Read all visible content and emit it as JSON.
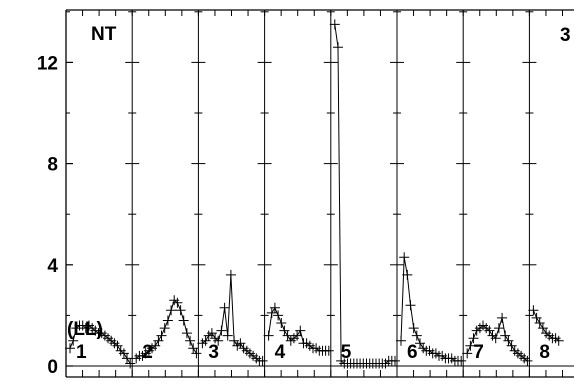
{
  "chart_data": {
    "type": "line",
    "title": "",
    "xlabel": "",
    "ylabel": "",
    "ylim": [
      -0.4,
      14.2
    ],
    "y_ticks": [
      0,
      4,
      8,
      12
    ],
    "y_tick_labels": [
      "0",
      "4",
      "8",
      "12"
    ],
    "grid": false,
    "marker": "plus",
    "corner_left_label": "NT",
    "corner_right_label": "3",
    "axis_annotation": "(LL)",
    "reference_line_y": 0,
    "panels": [
      {
        "label": "1",
        "x": [
          0,
          1,
          2,
          3,
          4,
          5,
          6,
          7,
          8,
          9,
          10,
          11,
          12,
          13,
          14,
          15,
          16,
          17,
          18,
          19
        ],
        "y": [
          0.7,
          1.0,
          1.5,
          1.6,
          1.6,
          1.5,
          1.6,
          1.5,
          1.4,
          1.3,
          1.3,
          1.2,
          1.1,
          1.0,
          0.9,
          0.8,
          0.6,
          0.5,
          0.3,
          0.1
        ]
      },
      {
        "label": "2",
        "x": [
          0,
          1,
          2,
          3,
          4,
          5,
          6,
          7,
          8,
          9,
          10,
          11,
          12,
          13,
          14,
          15,
          16,
          17,
          18,
          19
        ],
        "y": [
          0.3,
          0.4,
          0.4,
          0.5,
          0.6,
          0.7,
          0.8,
          1.0,
          1.2,
          1.5,
          1.8,
          2.2,
          2.6,
          2.5,
          2.2,
          1.8,
          1.3,
          1.0,
          0.7,
          0.5
        ]
      },
      {
        "label": "3",
        "x": [
          0,
          1,
          2,
          3,
          4,
          5,
          6,
          7,
          8,
          9,
          10,
          11,
          12,
          13,
          14,
          15,
          16,
          17,
          18,
          19
        ],
        "y": [
          0.9,
          1.0,
          1.2,
          1.3,
          1.1,
          1.0,
          1.4,
          2.3,
          1.2,
          3.6,
          1.0,
          0.8,
          0.9,
          0.7,
          0.6,
          0.5,
          0.4,
          0.3,
          0.2,
          0.2
        ]
      },
      {
        "label": "4",
        "x": [
          0,
          1,
          2,
          3,
          4,
          5,
          6,
          7,
          8,
          9,
          10,
          11,
          12,
          13,
          14,
          15,
          16,
          17,
          18,
          19
        ],
        "y": [
          1.2,
          2.1,
          2.3,
          2.0,
          1.7,
          1.4,
          1.2,
          1.0,
          1.1,
          1.2,
          1.4,
          0.9,
          0.9,
          0.8,
          0.7,
          0.7,
          0.6,
          0.6,
          0.6,
          0.6
        ]
      },
      {
        "label": "5",
        "x": [
          0,
          1,
          2,
          3,
          4,
          5,
          6,
          7,
          8,
          9,
          10,
          11,
          12,
          13,
          14,
          15,
          16,
          17,
          18,
          19
        ],
        "y": [
          13.5,
          12.6,
          0.2,
          0.1,
          0.1,
          0.1,
          0.1,
          0.1,
          0.1,
          0.1,
          0.1,
          0.1,
          0.1,
          0.1,
          0.1,
          0.1,
          0.1,
          0.2,
          0.2,
          0.2
        ]
      },
      {
        "label": "6",
        "x": [
          0,
          1,
          2,
          3,
          4,
          5,
          6,
          7,
          8,
          9,
          10,
          11,
          12,
          13,
          14,
          15,
          16,
          17,
          18,
          19
        ],
        "y": [
          1.0,
          4.3,
          3.6,
          2.4,
          1.5,
          1.2,
          0.9,
          0.7,
          0.6,
          0.6,
          0.5,
          0.5,
          0.4,
          0.4,
          0.3,
          0.3,
          0.3,
          0.2,
          0.2,
          0.2
        ]
      },
      {
        "label": "7",
        "x": [
          0,
          1,
          2,
          3,
          4,
          5,
          6,
          7,
          8,
          9,
          10,
          11,
          12,
          13,
          14,
          15,
          16,
          17,
          18,
          19
        ],
        "y": [
          0.5,
          0.8,
          1.1,
          1.4,
          1.5,
          1.6,
          1.5,
          1.4,
          1.2,
          1.1,
          1.5,
          1.9,
          1.2,
          1.0,
          0.8,
          0.6,
          0.5,
          0.4,
          0.3,
          0.2
        ]
      },
      {
        "label": "8",
        "x": [
          0,
          1,
          2,
          3,
          4,
          5,
          6,
          7,
          8
        ],
        "y": [
          2.2,
          1.9,
          1.7,
          1.5,
          1.3,
          1.2,
          1.1,
          1.1,
          1.0
        ]
      }
    ]
  }
}
